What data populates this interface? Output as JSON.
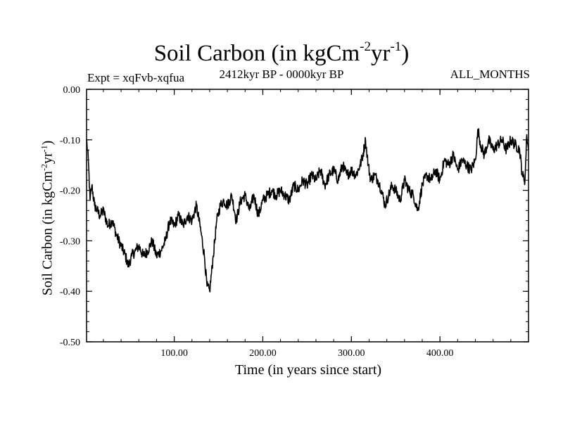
{
  "chart_data": {
    "type": "line",
    "title": "Soil Carbon (in kgCm",
    "title_sup1": "-2",
    "title_mid": "yr",
    "title_sup2": "-1",
    "title_end": ")",
    "expt_label": "Expt = xqFvb-xqfua",
    "period_label": "2412kyr BP - 0000kyr BP",
    "months_label": "ALL_MONTHS",
    "xlabel": "Time (in years since start)",
    "ylabel": "Soil Carbon (in kgCm",
    "ylabel_sup1": "-2",
    "ylabel_mid": "yr",
    "ylabel_sup2": "-1",
    "ylabel_end": ")",
    "xlim": [
      1,
      500
    ],
    "ylim": [
      -0.5,
      0.0
    ],
    "x_ticks": [
      100,
      200,
      300,
      400
    ],
    "x_tick_labels": [
      "100.00",
      "200.00",
      "300.00",
      "400.00"
    ],
    "y_ticks": [
      0.0,
      -0.1,
      -0.2,
      -0.3,
      -0.4,
      -0.5
    ],
    "y_tick_labels": [
      "0.00",
      "-0.10",
      "-0.20",
      "-0.30",
      "-0.40",
      "-0.50"
    ],
    "series": [
      {
        "name": "Soil Carbon",
        "color": "#000000",
        "x": [
          1,
          3,
          5,
          7,
          10,
          13,
          16,
          20,
          25,
          30,
          35,
          40,
          45,
          48,
          52,
          56,
          60,
          65,
          70,
          75,
          80,
          85,
          90,
          95,
          100,
          105,
          110,
          115,
          120,
          125,
          130,
          134,
          137,
          140,
          144,
          148,
          152,
          156,
          160,
          165,
          170,
          175,
          180,
          185,
          190,
          195,
          200,
          205,
          210,
          215,
          220,
          225,
          230,
          235,
          240,
          245,
          250,
          255,
          260,
          265,
          270,
          275,
          280,
          285,
          290,
          295,
          300,
          305,
          310,
          313,
          316,
          319,
          322,
          326,
          330,
          334,
          338,
          342,
          346,
          350,
          355,
          360,
          365,
          370,
          375,
          380,
          385,
          390,
          395,
          400,
          405,
          410,
          415,
          420,
          425,
          430,
          435,
          440,
          443,
          446,
          450,
          455,
          460,
          465,
          470,
          475,
          480,
          485,
          490,
          493,
          496,
          498,
          500
        ],
        "y": [
          -0.1,
          -0.14,
          -0.22,
          -0.19,
          -0.23,
          -0.24,
          -0.25,
          -0.24,
          -0.27,
          -0.26,
          -0.29,
          -0.31,
          -0.33,
          -0.35,
          -0.33,
          -0.32,
          -0.31,
          -0.33,
          -0.32,
          -0.3,
          -0.33,
          -0.32,
          -0.3,
          -0.26,
          -0.27,
          -0.25,
          -0.27,
          -0.25,
          -0.26,
          -0.23,
          -0.28,
          -0.33,
          -0.39,
          -0.4,
          -0.33,
          -0.26,
          -0.23,
          -0.22,
          -0.23,
          -0.21,
          -0.26,
          -0.22,
          -0.21,
          -0.24,
          -0.21,
          -0.25,
          -0.22,
          -0.21,
          -0.2,
          -0.21,
          -0.2,
          -0.21,
          -0.22,
          -0.19,
          -0.2,
          -0.18,
          -0.19,
          -0.17,
          -0.18,
          -0.16,
          -0.19,
          -0.17,
          -0.16,
          -0.18,
          -0.15,
          -0.17,
          -0.16,
          -0.17,
          -0.15,
          -0.13,
          -0.1,
          -0.15,
          -0.18,
          -0.17,
          -0.18,
          -0.2,
          -0.23,
          -0.21,
          -0.19,
          -0.2,
          -0.22,
          -0.18,
          -0.2,
          -0.21,
          -0.24,
          -0.19,
          -0.17,
          -0.18,
          -0.16,
          -0.18,
          -0.14,
          -0.15,
          -0.13,
          -0.16,
          -0.14,
          -0.15,
          -0.16,
          -0.14,
          -0.08,
          -0.11,
          -0.13,
          -0.1,
          -0.12,
          -0.11,
          -0.1,
          -0.12,
          -0.1,
          -0.11,
          -0.12,
          -0.17,
          -0.18,
          -0.09,
          -0.12
        ]
      }
    ]
  }
}
